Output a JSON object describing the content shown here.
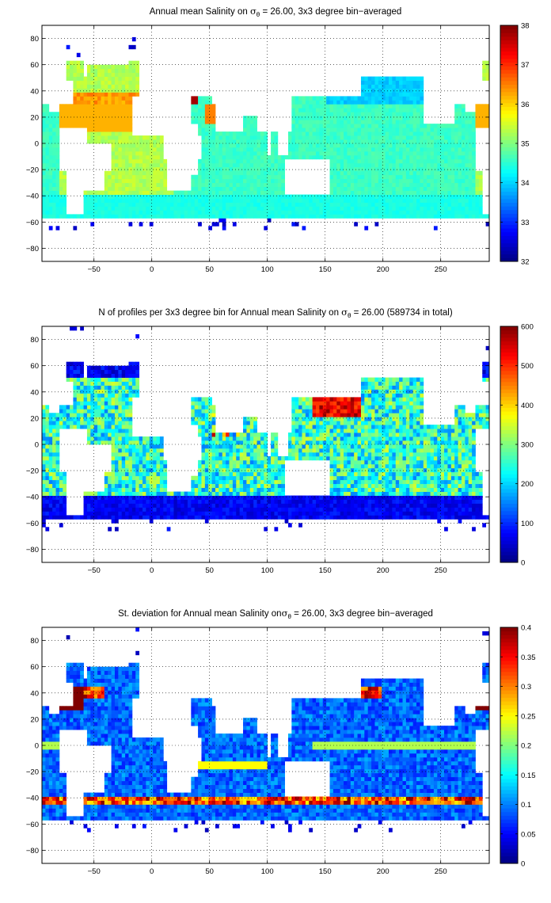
{
  "chart_data": [
    {
      "type": "heatmap",
      "title_parts": [
        "Annual mean Salinity on ",
        "σ",
        "θ",
        " = 26.00, 3x3 degree bin−averaged"
      ],
      "x_ticks": [
        -50,
        0,
        50,
        100,
        150,
        200,
        250
      ],
      "y_ticks": [
        80,
        60,
        40,
        20,
        0,
        -20,
        -40,
        -60,
        -80
      ],
      "xlim": [
        -95,
        292
      ],
      "ylim": [
        -90,
        90
      ],
      "grid": true,
      "colorbar": {
        "min": 32,
        "max": 38,
        "ticks": [
          32,
          33,
          34,
          35,
          36,
          37,
          38
        ]
      },
      "field": "salinity"
    },
    {
      "type": "heatmap",
      "title_parts": [
        "N of profiles per 3x3 degree bin for Annual mean Salinity on ",
        "σ",
        "θ",
        " = 26.00 (589734 in total)"
      ],
      "x_ticks": [
        -50,
        0,
        50,
        100,
        150,
        200,
        250
      ],
      "y_ticks": [
        80,
        60,
        40,
        20,
        0,
        -20,
        -40,
        -60,
        -80
      ],
      "xlim": [
        -95,
        292
      ],
      "ylim": [
        -90,
        90
      ],
      "grid": true,
      "colorbar": {
        "min": 0,
        "max": 600,
        "ticks": [
          0,
          100,
          200,
          300,
          400,
          500,
          600
        ]
      },
      "field": "count"
    },
    {
      "type": "heatmap",
      "title_parts": [
        "St. deviation for Annual mean Salinity on",
        "σ",
        "θ",
        " = 26.00, 3x3 degree bin−averaged"
      ],
      "x_ticks": [
        -50,
        0,
        50,
        100,
        150,
        200,
        250
      ],
      "y_ticks": [
        80,
        60,
        40,
        20,
        0,
        -20,
        -40,
        -60,
        -80
      ],
      "xlim": [
        -95,
        292
      ],
      "ylim": [
        -90,
        90
      ],
      "grid": true,
      "colorbar": {
        "min": 0,
        "max": 0.4,
        "ticks": [
          0,
          0.05,
          0.1,
          0.15,
          0.2,
          0.25,
          0.3,
          0.35,
          0.4
        ]
      },
      "field": "stdev"
    }
  ]
}
